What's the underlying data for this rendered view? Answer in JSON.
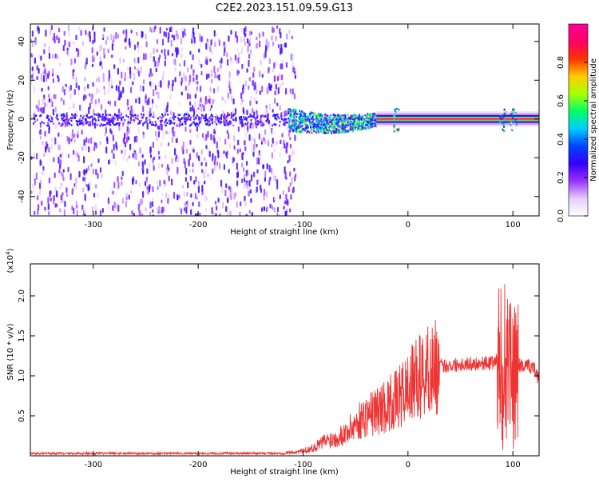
{
  "title": "C2E2.2023.151.09.59.G13",
  "colors": {
    "snr_line": "#ee3333",
    "scatter_core": "#6a0ff0",
    "scatter_light": "#c8a8f8",
    "colorbar": [
      "#ffffff",
      "#e6ccff",
      "#9933ff",
      "#3300ff",
      "#0044ff",
      "#00ccff",
      "#00ff66",
      "#aaff00",
      "#ffcc00",
      "#ff3300",
      "#ff0066",
      "#ff0099"
    ]
  },
  "chart_data": [
    {
      "type": "heatmap",
      "title": "",
      "xlabel": "Height of straight line (km)",
      "ylabel": "Frequency (Hz)",
      "xlim": [
        -360,
        125
      ],
      "ylim": [
        -50,
        49
      ],
      "x_ticks": [
        -300,
        -200,
        -100,
        0,
        100
      ],
      "x_tick_labels": [
        "-300",
        "-200",
        "-100",
        "0",
        "100"
      ],
      "y_ticks": [
        -40,
        -20,
        0,
        20,
        40
      ],
      "y_tick_labels": [
        "-40",
        "-20",
        "0",
        "20",
        "40"
      ],
      "colorbar": {
        "label": "Normalized spectral amplitude",
        "range": [
          0.0,
          1.0
        ],
        "ticks": [
          0.0,
          0.2,
          0.4,
          0.6,
          0.8
        ],
        "tick_labels": [
          "0.0",
          "0.2",
          "0.4",
          "0.6",
          "0.8"
        ]
      },
      "regions": [
        {
          "x": [
            -360,
            -115
          ],
          "description_value": "broadband noise",
          "amplitude": 0.15
        },
        {
          "x": [
            -115,
            -30
          ],
          "center_freq": -2,
          "spread": 6,
          "amplitude": 0.5
        },
        {
          "x": [
            -30,
            125
          ],
          "center_freq": 0,
          "spread": 1,
          "amplitude": 0.95
        }
      ]
    },
    {
      "type": "line",
      "title": "",
      "xlabel": "Height of straight line (km)",
      "ylabel": "SNR (10 * v/v)",
      "y_multiplier": "(x10",
      "y_multiplier_exp": "4",
      "y_multiplier_close": ")",
      "xlim": [
        -360,
        125
      ],
      "ylim": [
        0,
        24000
      ],
      "x_ticks": [
        -300,
        -200,
        -100,
        0,
        100
      ],
      "x_tick_labels": [
        "-300",
        "-200",
        "-100",
        "0",
        "100"
      ],
      "y_ticks": [
        5000,
        10000,
        15000,
        20000
      ],
      "y_tick_labels": [
        "0.5",
        "1.0",
        "1.5",
        "2.0"
      ],
      "series": [
        {
          "x": [
            -360,
            -300,
            -200,
            -120,
            -100,
            -90,
            -80,
            -70,
            -60,
            -50,
            -40,
            -30,
            -20,
            -10,
            0,
            10,
            20,
            30,
            40,
            50,
            60,
            70,
            80,
            85,
            90,
            95,
            100,
            105,
            110,
            115,
            120,
            125
          ],
          "y": [
            300,
            300,
            300,
            300,
            600,
            1000,
            1800,
            2200,
            2800,
            4000,
            5000,
            5600,
            6400,
            7000,
            8500,
            9800,
            10800,
            11200,
            11300,
            11500,
            11500,
            11600,
            11600,
            12000,
            13000,
            12000,
            10000,
            11500,
            11000,
            11200,
            11000,
            9500
          ]
        }
      ]
    }
  ]
}
